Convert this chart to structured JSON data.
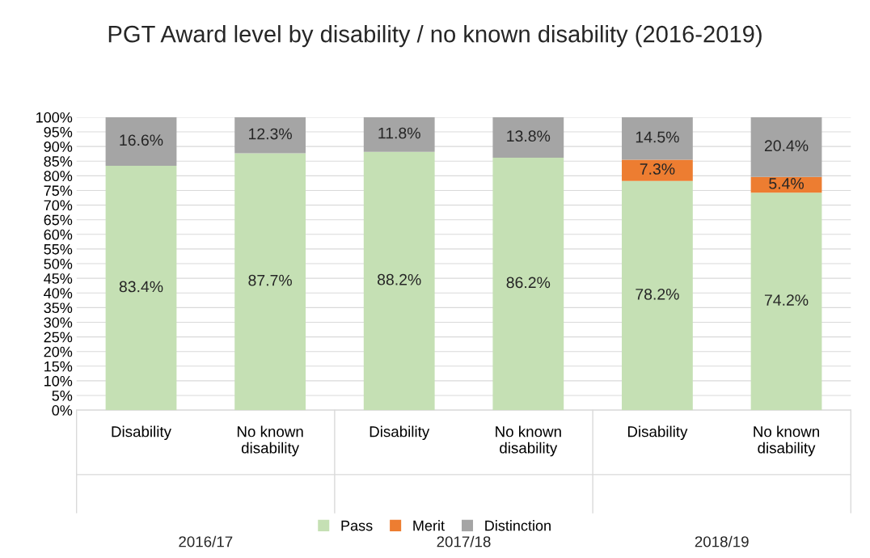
{
  "chart_data": {
    "type": "bar",
    "stacked": true,
    "title": "PGT Award level by disability / no known disability (2016-2019)",
    "categories": [
      "Disability",
      "No known\ndisability",
      "Disability",
      "No known\ndisability",
      "Disability",
      "No known\ndisability"
    ],
    "annotations": [
      "2016/17",
      "2017/18",
      "2018/19"
    ],
    "series": [
      {
        "name": "Pass",
        "color": "#c5e0b4",
        "values": [
          83.4,
          87.7,
          88.2,
          86.2,
          78.2,
          74.2
        ],
        "value_labels": [
          "83.4%",
          "87.7%",
          "88.2%",
          "86.2%",
          "78.2%",
          "74.2%"
        ]
      },
      {
        "name": "Merit",
        "color": "#ed7d31",
        "values": [
          null,
          null,
          null,
          null,
          7.3,
          5.4
        ],
        "value_labels": [
          null,
          null,
          null,
          null,
          "7.3%",
          "5.4%"
        ]
      },
      {
        "name": "Distinction",
        "color": "#a5a5a5",
        "values": [
          16.6,
          12.3,
          11.8,
          13.8,
          14.5,
          20.4
        ],
        "value_labels": [
          "16.6%",
          "12.3%",
          "11.8%",
          "13.8%",
          "14.5%",
          "20.4%"
        ]
      }
    ],
    "ylim": [
      0,
      100
    ],
    "yticks": [
      {
        "value": 0,
        "label": "0%"
      },
      {
        "value": 5,
        "label": "5%"
      },
      {
        "value": 10,
        "label": "10%"
      },
      {
        "value": 15,
        "label": "15%"
      },
      {
        "value": 20,
        "label": "20%"
      },
      {
        "value": 25,
        "label": "25%"
      },
      {
        "value": 30,
        "label": "30%"
      },
      {
        "value": 35,
        "label": "35%"
      },
      {
        "value": 40,
        "label": "40%"
      },
      {
        "value": 45,
        "label": "45%"
      },
      {
        "value": 50,
        "label": "50%"
      },
      {
        "value": 55,
        "label": "55%"
      },
      {
        "value": 60,
        "label": "60%"
      },
      {
        "value": 65,
        "label": "65%"
      },
      {
        "value": 70,
        "label": "70%"
      },
      {
        "value": 75,
        "label": "75%"
      },
      {
        "value": 80,
        "label": "80%"
      },
      {
        "value": 85,
        "label": "85%"
      },
      {
        "value": 90,
        "label": "90%"
      },
      {
        "value": 95,
        "label": "95%"
      },
      {
        "value": 100,
        "label": "100%"
      }
    ],
    "grid": "y",
    "legend": "bottom"
  }
}
